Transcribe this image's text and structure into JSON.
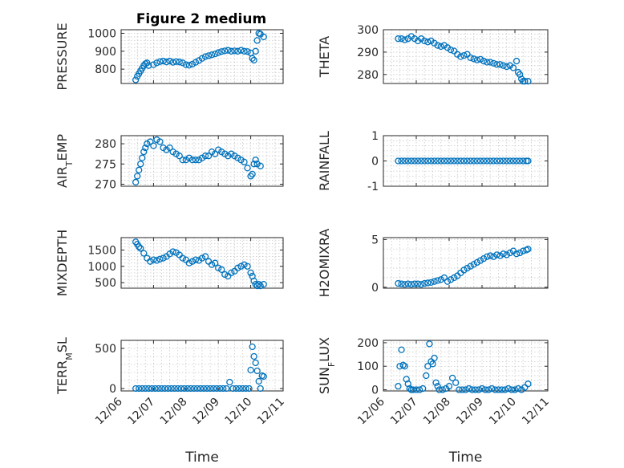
{
  "figure_title": "Figure 2 medium",
  "colors": {
    "marker": "#0072BD",
    "axis": "#262626",
    "grid": "#c8c8c8",
    "background": "#ffffff"
  },
  "chart_data": [
    {
      "type": "scatter",
      "title": "Figure 2 medium",
      "ylabel": "PRESSURE",
      "ylabel_parts": [
        {
          "t": "PRESSURE"
        }
      ],
      "xlabel": "",
      "xlim": [
        "12/06",
        "12/11"
      ],
      "ylim": [
        720,
        1020
      ],
      "yticks": [
        800,
        900,
        1000
      ],
      "xticks": [
        "12/06",
        "12/07",
        "12/08",
        "12/09",
        "12/10",
        "12/11"
      ],
      "grid": true,
      "x": [
        6.45,
        6.5,
        6.55,
        6.6,
        6.65,
        6.7,
        6.75,
        6.8,
        6.85,
        7.0,
        7.1,
        7.2,
        7.3,
        7.4,
        7.5,
        7.6,
        7.7,
        7.8,
        7.9,
        8.0,
        8.1,
        8.2,
        8.3,
        8.4,
        8.5,
        8.6,
        8.7,
        8.8,
        8.9,
        9.0,
        9.1,
        9.2,
        9.3,
        9.4,
        9.5,
        9.6,
        9.7,
        9.8,
        9.9,
        10.0,
        10.05,
        10.1,
        10.15,
        10.2,
        10.25,
        10.3,
        10.4
      ],
      "y": [
        740,
        760,
        775,
        790,
        805,
        820,
        830,
        835,
        820,
        825,
        835,
        842,
        845,
        840,
        845,
        838,
        842,
        840,
        835,
        825,
        822,
        828,
        838,
        848,
        860,
        870,
        875,
        880,
        885,
        892,
        898,
        902,
        905,
        900,
        902,
        900,
        905,
        900,
        898,
        890,
        860,
        850,
        900,
        960,
        1000,
        995,
        980
      ]
    },
    {
      "type": "scatter",
      "ylabel": "THETA",
      "ylabel_parts": [
        {
          "t": "THETA"
        }
      ],
      "xlabel": "",
      "xlim": [
        "12/06",
        "12/11"
      ],
      "ylim": [
        276,
        300
      ],
      "yticks": [
        280,
        290,
        300
      ],
      "xticks": [
        "12/06",
        "12/07",
        "12/08",
        "12/09",
        "12/10",
        "12/11"
      ],
      "grid": true,
      "x": [
        6.45,
        6.55,
        6.65,
        6.75,
        6.85,
        6.95,
        7.05,
        7.15,
        7.25,
        7.35,
        7.45,
        7.55,
        7.65,
        7.75,
        7.85,
        7.95,
        8.05,
        8.15,
        8.25,
        8.35,
        8.45,
        8.55,
        8.65,
        8.75,
        8.85,
        8.95,
        9.05,
        9.15,
        9.25,
        9.35,
        9.45,
        9.55,
        9.65,
        9.75,
        9.85,
        9.95,
        10.05,
        10.1,
        10.15,
        10.2,
        10.25,
        10.3,
        10.4
      ],
      "y": [
        296,
        296,
        295.5,
        296,
        297,
        296,
        295,
        296,
        295,
        294.5,
        295,
        294,
        293,
        292.5,
        293,
        292,
        291,
        290.5,
        289,
        288,
        288.5,
        289,
        287.5,
        287,
        286.5,
        286.8,
        286,
        285.5,
        285.5,
        285,
        284.5,
        284.5,
        284,
        283.5,
        284,
        283,
        286,
        281,
        280,
        278,
        277,
        277,
        277
      ]
    },
    {
      "type": "scatter",
      "ylabel": "AIR_TEMP",
      "ylabel_parts": [
        {
          "t": "AIR"
        },
        {
          "t": "T",
          "sub": true
        },
        {
          "t": "EMP"
        }
      ],
      "xlabel": "",
      "xlim": [
        "12/06",
        "12/11"
      ],
      "ylim": [
        269.5,
        282
      ],
      "yticks": [
        270,
        275,
        280
      ],
      "xticks": [
        "12/06",
        "12/07",
        "12/08",
        "12/09",
        "12/10",
        "12/11"
      ],
      "grid": true,
      "x": [
        6.45,
        6.5,
        6.55,
        6.6,
        6.65,
        6.7,
        6.75,
        6.8,
        6.9,
        7.0,
        7.1,
        7.2,
        7.3,
        7.4,
        7.5,
        7.6,
        7.7,
        7.8,
        7.9,
        8.0,
        8.1,
        8.2,
        8.3,
        8.4,
        8.5,
        8.6,
        8.7,
        8.8,
        8.9,
        9.0,
        9.1,
        9.2,
        9.3,
        9.4,
        9.5,
        9.6,
        9.7,
        9.8,
        9.9,
        10.0,
        10.05,
        10.1,
        10.15,
        10.2,
        10.3
      ],
      "y": [
        270.5,
        272,
        273.5,
        275,
        276.5,
        278,
        279,
        280,
        280.5,
        279.5,
        281,
        280.5,
        279,
        278.5,
        279,
        278,
        277.5,
        277,
        276,
        276,
        276.5,
        276,
        276,
        276,
        276.5,
        277,
        277,
        278,
        277.5,
        278.5,
        278,
        277.5,
        277,
        277.5,
        277,
        276.5,
        276,
        275.5,
        274,
        272,
        272.5,
        275,
        276,
        275,
        274.5
      ]
    },
    {
      "type": "scatter",
      "ylabel": "RAINFALL",
      "ylabel_parts": [
        {
          "t": "RAINFALL"
        }
      ],
      "xlabel": "",
      "xlim": [
        "12/06",
        "12/11"
      ],
      "ylim": [
        -1,
        1
      ],
      "yticks": [
        -1,
        0,
        1
      ],
      "xticks": [
        "12/06",
        "12/07",
        "12/08",
        "12/09",
        "12/10",
        "12/11"
      ],
      "grid": true,
      "x": [
        6.45,
        6.55,
        6.65,
        6.75,
        6.85,
        6.95,
        7.05,
        7.15,
        7.25,
        7.35,
        7.45,
        7.55,
        7.65,
        7.75,
        7.85,
        7.95,
        8.05,
        8.15,
        8.25,
        8.35,
        8.45,
        8.55,
        8.65,
        8.75,
        8.85,
        8.95,
        9.05,
        9.15,
        9.25,
        9.35,
        9.45,
        9.55,
        9.65,
        9.75,
        9.85,
        9.95,
        10.05,
        10.15,
        10.25,
        10.35,
        10.4
      ],
      "y": [
        0,
        0,
        0,
        0,
        0,
        0,
        0,
        0,
        0,
        0,
        0,
        0,
        0,
        0,
        0,
        0,
        0,
        0,
        0,
        0,
        0,
        0,
        0,
        0,
        0,
        0,
        0,
        0,
        0,
        0,
        0,
        0,
        0,
        0,
        0,
        0,
        0,
        0,
        0,
        0,
        0
      ]
    },
    {
      "type": "scatter",
      "ylabel": "MIXDEPTH",
      "ylabel_parts": [
        {
          "t": "MIXDEPTH"
        }
      ],
      "xlabel": "",
      "xlim": [
        "12/06",
        "12/11"
      ],
      "ylim": [
        330,
        1880
      ],
      "yticks": [
        500,
        1000,
        1500
      ],
      "xticks": [
        "12/06",
        "12/07",
        "12/08",
        "12/09",
        "12/10",
        "12/11"
      ],
      "grid": true,
      "x": [
        6.45,
        6.5,
        6.55,
        6.6,
        6.7,
        6.8,
        6.9,
        7.0,
        7.1,
        7.2,
        7.3,
        7.4,
        7.5,
        7.6,
        7.7,
        7.8,
        7.9,
        8.0,
        8.1,
        8.2,
        8.3,
        8.4,
        8.5,
        8.6,
        8.7,
        8.8,
        8.9,
        9.0,
        9.1,
        9.2,
        9.3,
        9.4,
        9.5,
        9.6,
        9.7,
        9.8,
        9.9,
        10.0,
        10.05,
        10.1,
        10.15,
        10.2,
        10.25,
        10.3,
        10.4
      ],
      "y": [
        1750,
        1680,
        1600,
        1550,
        1400,
        1250,
        1150,
        1200,
        1180,
        1220,
        1250,
        1300,
        1380,
        1450,
        1420,
        1350,
        1250,
        1200,
        1100,
        1150,
        1200,
        1180,
        1250,
        1300,
        1150,
        1050,
        1100,
        950,
        900,
        750,
        700,
        800,
        850,
        950,
        1000,
        1050,
        1000,
        800,
        700,
        550,
        450,
        400,
        450,
        400,
        450
      ]
    },
    {
      "type": "scatter",
      "ylabel": "H2OMIXRA",
      "ylabel_parts": [
        {
          "t": "H2OMIXRA"
        }
      ],
      "xlabel": "",
      "xlim": [
        "12/06",
        "12/11"
      ],
      "ylim": [
        -0.1,
        5.2
      ],
      "yticks": [
        0,
        5
      ],
      "xticks": [
        "12/06",
        "12/07",
        "12/08",
        "12/09",
        "12/10",
        "12/11"
      ],
      "grid": true,
      "x": [
        6.45,
        6.55,
        6.65,
        6.75,
        6.85,
        6.95,
        7.05,
        7.15,
        7.25,
        7.35,
        7.45,
        7.55,
        7.65,
        7.75,
        7.85,
        7.95,
        8.05,
        8.15,
        8.25,
        8.35,
        8.45,
        8.55,
        8.65,
        8.75,
        8.85,
        8.95,
        9.05,
        9.15,
        9.25,
        9.35,
        9.45,
        9.55,
        9.65,
        9.75,
        9.85,
        9.95,
        10.05,
        10.15,
        10.25,
        10.35,
        10.4
      ],
      "y": [
        0.4,
        0.35,
        0.3,
        0.35,
        0.3,
        0.35,
        0.35,
        0.3,
        0.4,
        0.45,
        0.5,
        0.6,
        0.7,
        0.8,
        1.0,
        0.6,
        0.8,
        1.0,
        1.2,
        1.5,
        1.8,
        2.0,
        2.2,
        2.4,
        2.6,
        2.8,
        3.0,
        3.2,
        3.3,
        3.2,
        3.4,
        3.3,
        3.5,
        3.4,
        3.6,
        3.8,
        3.5,
        3.6,
        3.8,
        3.9,
        4.0
      ]
    },
    {
      "type": "scatter",
      "ylabel": "TERR_MSL",
      "ylabel_parts": [
        {
          "t": "TERR"
        },
        {
          "t": "M",
          "sub": true
        },
        {
          "t": "SL"
        }
      ],
      "xlabel": "",
      "xlim": [
        "12/06",
        "12/11"
      ],
      "ylim": [
        -30,
        600
      ],
      "yticks": [
        0,
        500
      ],
      "xticks": [
        "12/06",
        "12/07",
        "12/08",
        "12/09",
        "12/10",
        "12/11"
      ],
      "grid": true,
      "x": [
        6.45,
        6.55,
        6.65,
        6.75,
        6.85,
        6.95,
        7.05,
        7.15,
        7.25,
        7.35,
        7.45,
        7.55,
        7.65,
        7.75,
        7.85,
        7.95,
        8.05,
        8.15,
        8.25,
        8.35,
        8.45,
        8.55,
        8.65,
        8.75,
        8.85,
        8.95,
        9.05,
        9.15,
        9.25,
        9.35,
        9.45,
        9.55,
        9.65,
        9.75,
        9.85,
        9.95,
        10.0,
        10.05,
        10.1,
        10.15,
        10.2,
        10.25,
        10.3,
        10.35,
        10.4
      ],
      "y": [
        0,
        0,
        0,
        0,
        0,
        0,
        0,
        0,
        0,
        0,
        0,
        0,
        0,
        0,
        0,
        0,
        0,
        0,
        0,
        0,
        0,
        0,
        0,
        0,
        0,
        0,
        0,
        0,
        0,
        80,
        0,
        0,
        0,
        0,
        0,
        0,
        230,
        520,
        400,
        320,
        220,
        90,
        0,
        160,
        150
      ]
    },
    {
      "type": "scatter",
      "ylabel": "SUN_FLUX",
      "ylabel_parts": [
        {
          "t": "SUN"
        },
        {
          "t": "F",
          "sub": true
        },
        {
          "t": "LUX"
        }
      ],
      "xlabel": "",
      "xlim": [
        "12/06",
        "12/11"
      ],
      "ylim": [
        -5,
        210
      ],
      "yticks": [
        0,
        100,
        200
      ],
      "xticks": [
        "12/06",
        "12/07",
        "12/08",
        "12/09",
        "12/10",
        "12/11"
      ],
      "grid": true,
      "x": [
        6.45,
        6.5,
        6.55,
        6.6,
        6.65,
        6.7,
        6.75,
        6.8,
        6.85,
        6.9,
        7.0,
        7.1,
        7.2,
        7.3,
        7.35,
        7.4,
        7.45,
        7.5,
        7.55,
        7.6,
        7.65,
        7.7,
        7.8,
        7.9,
        8.0,
        8.1,
        8.2,
        8.3,
        8.4,
        8.5,
        8.6,
        8.7,
        8.8,
        8.9,
        9.0,
        9.1,
        9.2,
        9.3,
        9.4,
        9.5,
        9.6,
        9.7,
        9.8,
        9.9,
        10.0,
        10.1,
        10.2,
        10.3,
        10.4
      ],
      "y": [
        15,
        100,
        170,
        105,
        100,
        45,
        25,
        5,
        0,
        0,
        0,
        0,
        5,
        60,
        100,
        195,
        120,
        110,
        135,
        30,
        15,
        0,
        0,
        5,
        15,
        50,
        30,
        0,
        0,
        0,
        5,
        0,
        0,
        0,
        5,
        0,
        0,
        5,
        0,
        0,
        0,
        0,
        5,
        0,
        0,
        5,
        0,
        10,
        25
      ]
    }
  ],
  "shared_xlabel": "Time"
}
